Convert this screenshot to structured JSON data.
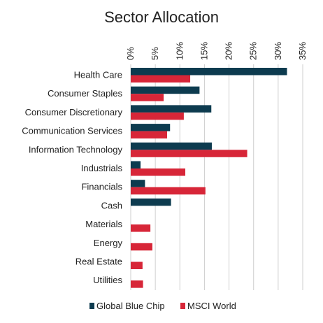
{
  "chart_data": {
    "type": "bar",
    "orientation": "horizontal",
    "title": "Sector Allocation",
    "categories": [
      "Health Care",
      "Consumer Staples",
      "Consumer Discretionary",
      "Communication Services",
      "Information Technology",
      "Industrials",
      "Financials",
      "Cash",
      "Materials",
      "Energy",
      "Real Estate",
      "Utilities"
    ],
    "series": [
      {
        "name": "Global Blue Chip",
        "color": "#0d3b4f",
        "values": [
          31.8,
          14.0,
          16.4,
          8.0,
          16.5,
          2.0,
          2.9,
          8.2,
          0,
          0,
          0,
          0
        ]
      },
      {
        "name": "MSCI World",
        "color": "#d72638",
        "values": [
          12.1,
          6.7,
          10.8,
          7.4,
          23.7,
          11.1,
          15.2,
          0,
          4.0,
          4.4,
          2.4,
          2.5
        ]
      }
    ],
    "xlim": [
      0,
      35
    ],
    "xticks": [
      "0%",
      "5%",
      "10%",
      "15%",
      "20%",
      "25%",
      "30%",
      "35%"
    ],
    "grid": true,
    "legend_position": "bottom"
  }
}
